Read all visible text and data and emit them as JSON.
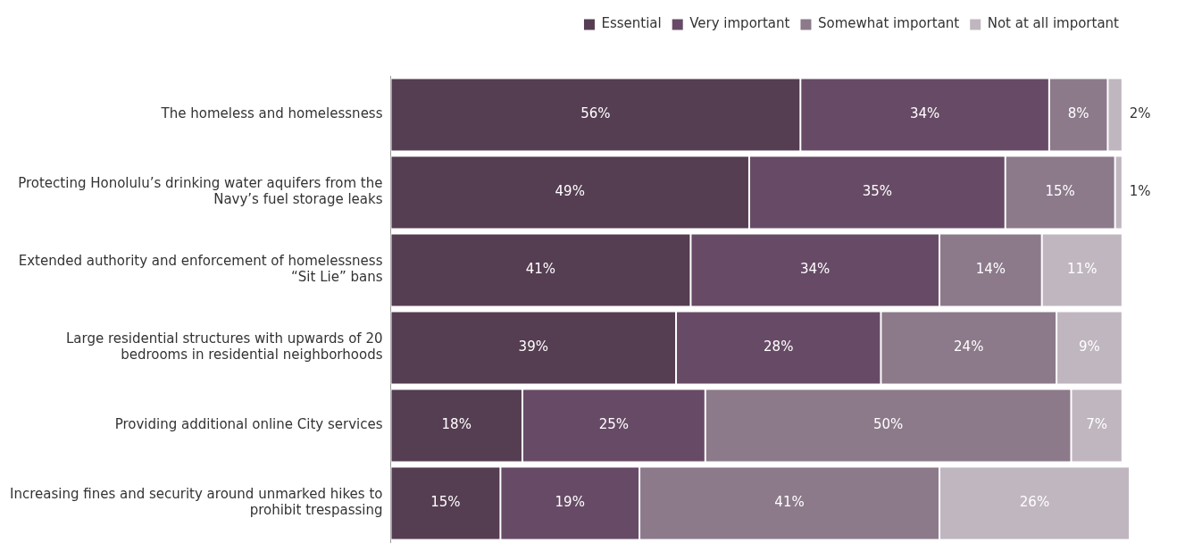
{
  "chart_data": {
    "type": "bar",
    "orientation": "horizontal",
    "stacked": true,
    "legend": "top right",
    "tick_labels": "y",
    "categories": [
      "The homeless and homelessness",
      "Protecting Honolulu’s drinking water aquifers from the Navy’s fuel storage leaks",
      "Extended authority and enforcement of homelessness “Sit Lie” bans",
      "Large residential structures with upwards of 20 bedrooms in residential neighborhoods",
      "Providing additional online City services",
      "Increasing fines and security around unmarked hikes to prohibit trespassing"
    ],
    "series": [
      {
        "name": "Essential",
        "color": "#553d52",
        "values": [
          56,
          49,
          41,
          39,
          18,
          15
        ],
        "value_labels": [
          "56%",
          "49%",
          "41%",
          "39%",
          "18%",
          "15%"
        ]
      },
      {
        "name": "Very important",
        "color": "#674b66",
        "values": [
          34,
          35,
          34,
          28,
          25,
          19
        ],
        "value_labels": [
          "34%",
          "35%",
          "34%",
          "28%",
          "25%",
          "19%"
        ]
      },
      {
        "name": "Somewhat important",
        "color": "#8c7a8b",
        "values": [
          8,
          15,
          14,
          24,
          50,
          41
        ],
        "value_labels": [
          "8%",
          "15%",
          "14%",
          "24%",
          "50%",
          "41%"
        ]
      },
      {
        "name": "Not at all important",
        "color": "#c0b6bf",
        "values": [
          2,
          1,
          11,
          9,
          7,
          26
        ],
        "value_labels": [
          "2%",
          "1%",
          "11%",
          "9%",
          "7%",
          "26%"
        ]
      }
    ]
  }
}
